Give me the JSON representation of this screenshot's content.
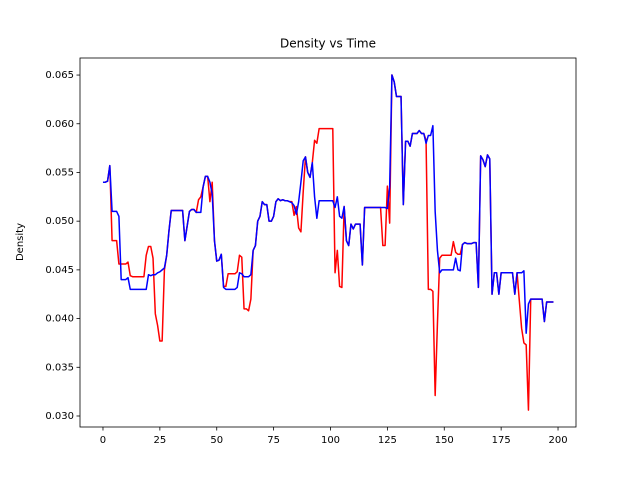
{
  "chart_data": {
    "type": "line",
    "title": "Density vs Time",
    "ylabel": "Density",
    "x": [
      0,
      1,
      2,
      3,
      4,
      5,
      6,
      7,
      8,
      9,
      10,
      11,
      12,
      13,
      14,
      15,
      16,
      17,
      18,
      19,
      20,
      21,
      22,
      23,
      24,
      25,
      26,
      27,
      28,
      29,
      30,
      31,
      32,
      33,
      34,
      35,
      36,
      37,
      38,
      39,
      40,
      41,
      42,
      43,
      44,
      45,
      46,
      47,
      48,
      49,
      50,
      51,
      52,
      53,
      54,
      55,
      56,
      57,
      58,
      59,
      60,
      61,
      62,
      63,
      64,
      65,
      66,
      67,
      68,
      69,
      70,
      71,
      72,
      73,
      74,
      75,
      76,
      77,
      78,
      79,
      80,
      81,
      82,
      83,
      84,
      85,
      86,
      87,
      88,
      89,
      90,
      91,
      92,
      93,
      94,
      95,
      96,
      97,
      98,
      99,
      100,
      101,
      102,
      103,
      104,
      105,
      106,
      107,
      108,
      109,
      110,
      111,
      112,
      113,
      114,
      115,
      116,
      117,
      118,
      119,
      120,
      121,
      122,
      123,
      124,
      125,
      126,
      127,
      128,
      129,
      130,
      131,
      132,
      133,
      134,
      135,
      136,
      137,
      138,
      139,
      140,
      141,
      142,
      143,
      144,
      145,
      146,
      147,
      148,
      149,
      150,
      151,
      152,
      153,
      154,
      155,
      156,
      157,
      158,
      159,
      160,
      161,
      162,
      163,
      164,
      165,
      166,
      167,
      168,
      169,
      170,
      171,
      172,
      173,
      174,
      175,
      176,
      177,
      178,
      179,
      180,
      181,
      182,
      183,
      184,
      185,
      186,
      187,
      188,
      189,
      190,
      191,
      192,
      193,
      194,
      195,
      196,
      197,
      198
    ],
    "series": [
      {
        "color": "#ff0000",
        "values": [
          0.054,
          0.054,
          0.0541,
          0.0557,
          0.048,
          0.048,
          0.048,
          0.0456,
          0.0456,
          0.0456,
          0.0456,
          0.0458,
          0.0444,
          0.0443,
          0.0443,
          0.0443,
          0.0443,
          0.0443,
          0.0443,
          0.0465,
          0.0474,
          0.0474,
          0.0462,
          0.0405,
          0.0393,
          0.0377,
          0.0377,
          0.045,
          0.0465,
          0.049,
          0.0511,
          0.0511,
          0.0511,
          0.0511,
          0.0511,
          0.0511,
          0.048,
          0.0495,
          0.051,
          0.0512,
          0.0512,
          0.0509,
          0.0522,
          0.0525,
          0.0535,
          0.0546,
          0.0546,
          0.052,
          0.054,
          0.048,
          0.0459,
          0.046,
          0.0466,
          0.0433,
          0.0433,
          0.0446,
          0.0446,
          0.0446,
          0.0446,
          0.0448,
          0.0465,
          0.0463,
          0.041,
          0.041,
          0.0408,
          0.042,
          0.047,
          0.0475,
          0.05,
          0.0505,
          0.052,
          0.0517,
          0.0517,
          0.05,
          0.05,
          0.0505,
          0.052,
          0.0523,
          0.0521,
          0.0522,
          0.0521,
          0.0521,
          0.052,
          0.052,
          0.0506,
          0.0515,
          0.0493,
          0.0489,
          0.053,
          0.0566,
          0.055,
          0.0545,
          0.056,
          0.0583,
          0.058,
          0.0595,
          0.0595,
          0.0595,
          0.0595,
          0.0595,
          0.0595,
          0.0595,
          0.0447,
          0.047,
          0.0433,
          0.0432,
          0.0515,
          0.048,
          0.0475,
          0.0497,
          0.0492,
          0.0497,
          0.0497,
          0.0497,
          0.0455,
          0.0514,
          0.0514,
          0.0514,
          0.0514,
          0.0514,
          0.0514,
          0.0514,
          0.0514,
          0.0475,
          0.0475,
          0.0536,
          0.0498,
          0.065,
          0.0643,
          0.0628,
          0.0628,
          0.0628,
          0.0517,
          0.0582,
          0.0582,
          0.0577,
          0.059,
          0.059,
          0.059,
          0.0593,
          0.059,
          0.059,
          0.0583,
          0.043,
          0.043,
          0.0428,
          0.0321,
          0.0395,
          0.0462,
          0.0465,
          0.0465,
          0.0465,
          0.0465,
          0.0465,
          0.0479,
          0.0468,
          0.0466,
          0.0466,
          0.0476,
          0.0478,
          0.0477,
          0.0477,
          0.0477,
          0.0478,
          0.0478,
          0.0432,
          0.0567,
          0.0563,
          0.0556,
          0.0568,
          0.0564,
          0.0425,
          0.0447,
          0.0447,
          0.0425,
          0.0447,
          0.0447,
          0.0447,
          0.0447,
          0.0447,
          0.0447,
          0.0425,
          0.0447,
          0.0418,
          0.039,
          0.0375,
          0.0373,
          0.0306,
          0.042,
          0.042,
          0.042,
          0.042,
          0.042,
          0.042,
          0.0397,
          0.0417,
          0.0417,
          0.0417,
          0.0417
        ]
      },
      {
        "color": "#0000ff",
        "values": [
          0.054,
          0.054,
          0.0541,
          0.0557,
          0.051,
          0.051,
          0.051,
          0.0505,
          0.044,
          0.044,
          0.044,
          0.0442,
          0.043,
          0.043,
          0.043,
          0.043,
          0.043,
          0.043,
          0.043,
          0.043,
          0.0445,
          0.0444,
          0.0445,
          0.0445,
          0.0447,
          0.0448,
          0.045,
          0.0452,
          0.0465,
          0.049,
          0.0511,
          0.0511,
          0.0511,
          0.0511,
          0.0511,
          0.0511,
          0.048,
          0.0495,
          0.051,
          0.0512,
          0.0512,
          0.0509,
          0.0509,
          0.0509,
          0.0535,
          0.0546,
          0.0546,
          0.054,
          0.0528,
          0.048,
          0.0459,
          0.046,
          0.0466,
          0.0432,
          0.043,
          0.043,
          0.043,
          0.043,
          0.043,
          0.0432,
          0.0447,
          0.0446,
          0.0443,
          0.0443,
          0.0443,
          0.0445,
          0.047,
          0.0475,
          0.05,
          0.0505,
          0.052,
          0.0517,
          0.0517,
          0.05,
          0.05,
          0.0505,
          0.052,
          0.0523,
          0.0521,
          0.0522,
          0.0521,
          0.0521,
          0.052,
          0.0519,
          0.0516,
          0.0507,
          0.052,
          0.054,
          0.0562,
          0.0566,
          0.055,
          0.0545,
          0.056,
          0.0525,
          0.0503,
          0.0521,
          0.0521,
          0.0521,
          0.0521,
          0.0521,
          0.0521,
          0.0521,
          0.0514,
          0.0525,
          0.0505,
          0.0503,
          0.0515,
          0.048,
          0.0475,
          0.0497,
          0.0492,
          0.0497,
          0.0497,
          0.0497,
          0.0455,
          0.0514,
          0.0514,
          0.0514,
          0.0514,
          0.0514,
          0.0514,
          0.0514,
          0.0514,
          0.0514,
          0.0514,
          0.0513,
          0.0535,
          0.065,
          0.0643,
          0.0628,
          0.0628,
          0.0628,
          0.0517,
          0.0582,
          0.0582,
          0.0577,
          0.059,
          0.059,
          0.059,
          0.0593,
          0.059,
          0.059,
          0.058,
          0.0588,
          0.0588,
          0.0598,
          0.051,
          0.047,
          0.0447,
          0.045,
          0.045,
          0.045,
          0.045,
          0.045,
          0.045,
          0.0462,
          0.045,
          0.0449,
          0.0476,
          0.0478,
          0.0477,
          0.0477,
          0.0477,
          0.0478,
          0.0478,
          0.0432,
          0.0567,
          0.0563,
          0.0556,
          0.0568,
          0.0564,
          0.0425,
          0.0447,
          0.0447,
          0.0425,
          0.0447,
          0.0447,
          0.0447,
          0.0447,
          0.0447,
          0.0447,
          0.0425,
          0.0447,
          0.0447,
          0.0447,
          0.0449,
          0.0385,
          0.0415,
          0.042,
          0.042,
          0.042,
          0.042,
          0.042,
          0.042,
          0.0397,
          0.0417,
          0.0417,
          0.0417,
          0.0417
        ]
      }
    ],
    "xlim": [
      -10.1,
      207.9
    ],
    "ylim": [
      0.02887,
      0.06675
    ],
    "xticks": [
      0,
      25,
      50,
      75,
      100,
      125,
      150,
      175,
      200
    ],
    "yticks": [
      {
        "value": 0.03,
        "label": "0.030"
      },
      {
        "value": 0.035,
        "label": "0.035"
      },
      {
        "value": 0.04,
        "label": "0.040"
      },
      {
        "value": 0.045,
        "label": "0.045"
      },
      {
        "value": 0.05,
        "label": "0.050"
      },
      {
        "value": 0.055,
        "label": "0.055"
      },
      {
        "value": 0.06,
        "label": "0.060"
      },
      {
        "value": 0.065,
        "label": "0.065"
      }
    ]
  }
}
